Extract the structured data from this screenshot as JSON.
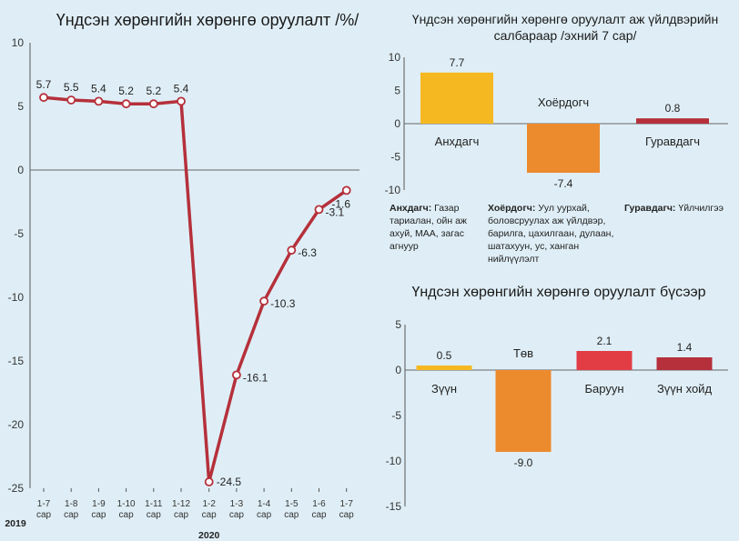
{
  "chart_data": [
    {
      "type": "line",
      "title": "Үндсэн хөрөнгийн хөрөнгө оруулалт /%/",
      "categories": [
        "1-7 сар",
        "1-8 сар",
        "1-9 сар",
        "1-10 сар",
        "1-11 сар",
        "1-12 сар",
        "1-2 сар",
        "1-3 сар",
        "1-4 сар",
        "1-5 сар",
        "1-6 сар",
        "1-7 сар"
      ],
      "category_lines": [
        [
          "1-7",
          "сар"
        ],
        [
          "1-8",
          "сар"
        ],
        [
          "1-9",
          "сар"
        ],
        [
          "1-10",
          "сар"
        ],
        [
          "1-11",
          "сар"
        ],
        [
          "1-12",
          "сар"
        ],
        [
          "1-2",
          "сар"
        ],
        [
          "1-3",
          "сар"
        ],
        [
          "1-4",
          "сар"
        ],
        [
          "1-5",
          "сар"
        ],
        [
          "1-6",
          "сар"
        ],
        [
          "1-7",
          "сар"
        ]
      ],
      "values": [
        5.7,
        5.5,
        5.4,
        5.2,
        5.2,
        5.4,
        -24.5,
        -16.1,
        -10.3,
        -6.3,
        -3.1,
        -1.6
      ],
      "data_labels": [
        "5.7",
        "5.5",
        "5.4",
        "5.2",
        "5.2",
        "5.4",
        "-24.5",
        "-16.1",
        "-10.3",
        "-6.3",
        "-3.1",
        "-1.6"
      ],
      "year_labels": [
        {
          "text": "2019",
          "index": 0
        },
        {
          "text": "2020",
          "index": 6
        }
      ],
      "ylim": [
        -25,
        10
      ],
      "yticks": [
        10,
        5,
        0,
        -5,
        -10,
        -15,
        -20,
        -25
      ],
      "line_color": "#b5303b",
      "marker_fill": "#ffffff"
    },
    {
      "type": "bar",
      "title": "Үндсэн хөрөнгийн хөрөнгө оруулалт аж үйлдвэрийн салбараар /эхний 7 сар/",
      "title_lines": [
        "Үндсэн хөрөнгийн хөрөнгө оруулалт аж үйлдвэрийн",
        "салбараар /эхний 7 сар/"
      ],
      "categories": [
        "Анхдагч",
        "Хоёрдогч",
        "Гуравдагч"
      ],
      "values": [
        7.7,
        -7.4,
        0.8
      ],
      "data_labels": [
        "7.7",
        "-7.4",
        "0.8"
      ],
      "colors": [
        "#f6b821",
        "#ec8a2e",
        "#b5303b"
      ],
      "ylim": [
        -10,
        10
      ],
      "yticks": [
        10,
        5,
        0,
        -5,
        -10
      ],
      "notes": [
        {
          "term": "Анхдагч:",
          "text": " Газар тариалан, ойн аж ахуй, МАА, загас агнуур"
        },
        {
          "term": "Хоёрдогч:",
          "text": " Уул уурхай, боловсруулах аж үйлдвэр, барилга, цахилгаан, дулаан, шатахуун, ус, ханган нийлүүлэлт"
        },
        {
          "term": "Гуравдагч:",
          "text": " Үйлчилгээ"
        }
      ]
    },
    {
      "type": "bar",
      "title": "Үндсэн хөрөнгийн хөрөнгө оруулалт бүсээр",
      "categories": [
        "Зүүн",
        "Төв",
        "Баруун",
        "Зүүн хойд"
      ],
      "values": [
        0.5,
        -9.0,
        2.1,
        1.4
      ],
      "data_labels": [
        "0.5",
        "-9.0",
        "2.1",
        "1.4"
      ],
      "colors": [
        "#f6b821",
        "#ec8a2e",
        "#e23c45",
        "#b5303b"
      ],
      "ylim": [
        -15,
        5
      ],
      "yticks": [
        5,
        0,
        -5,
        -10,
        -15
      ]
    }
  ]
}
